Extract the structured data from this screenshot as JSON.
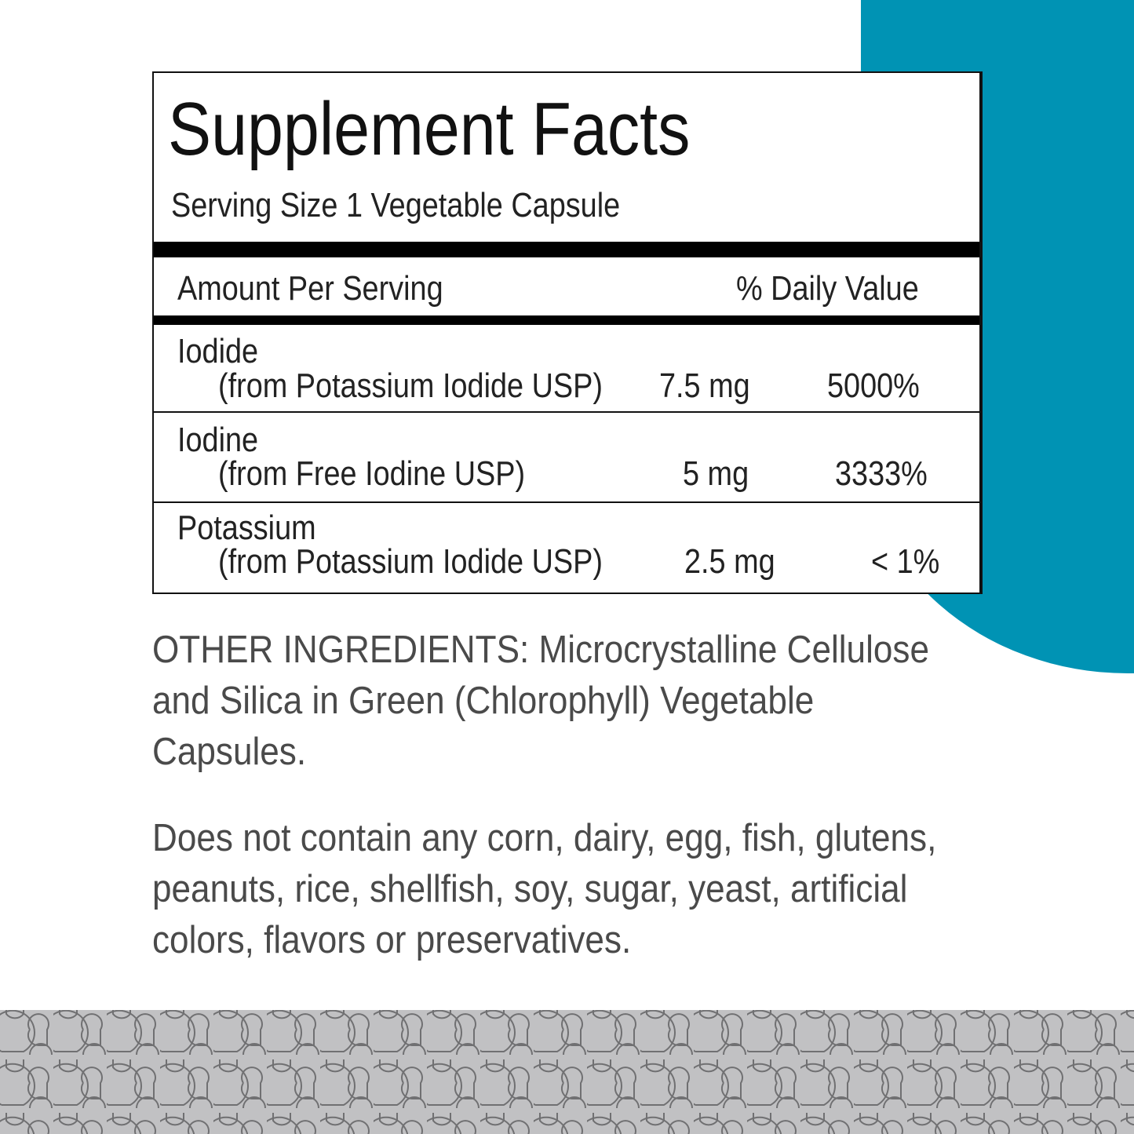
{
  "colors": {
    "accent": "#0093b4",
    "band": "#c1c1c3",
    "band_lines": "#707072"
  },
  "facts": {
    "title": "Supplement Facts",
    "serving_size": "Serving Size 1 Vegetable Capsule",
    "header_amount": "Amount Per Serving",
    "header_dv": "% Daily Value",
    "rows": [
      {
        "name": "Iodide",
        "source": "(from Potassium Iodide USP)",
        "amount": "7.5 mg",
        "dv": "5000%"
      },
      {
        "name": "Iodine",
        "source": "(from Free Iodine USP)",
        "amount": "5 mg",
        "dv": "3333%"
      },
      {
        "name": "Potassium",
        "source": "(from Potassium Iodide USP)",
        "amount": "2.5 mg",
        "dv": "< 1%"
      }
    ]
  },
  "other_ingredients": "OTHER INGREDIENTS: Microcrystalline Cellulose and Silica in Green (Chlorophyll) Vegetable Capsules.",
  "allergen_statement": "Does not contain any corn, dairy, egg, fish, glutens, peanuts, rice, shellfish, soy, sugar, yeast, artificial colors, flavors or preservatives."
}
